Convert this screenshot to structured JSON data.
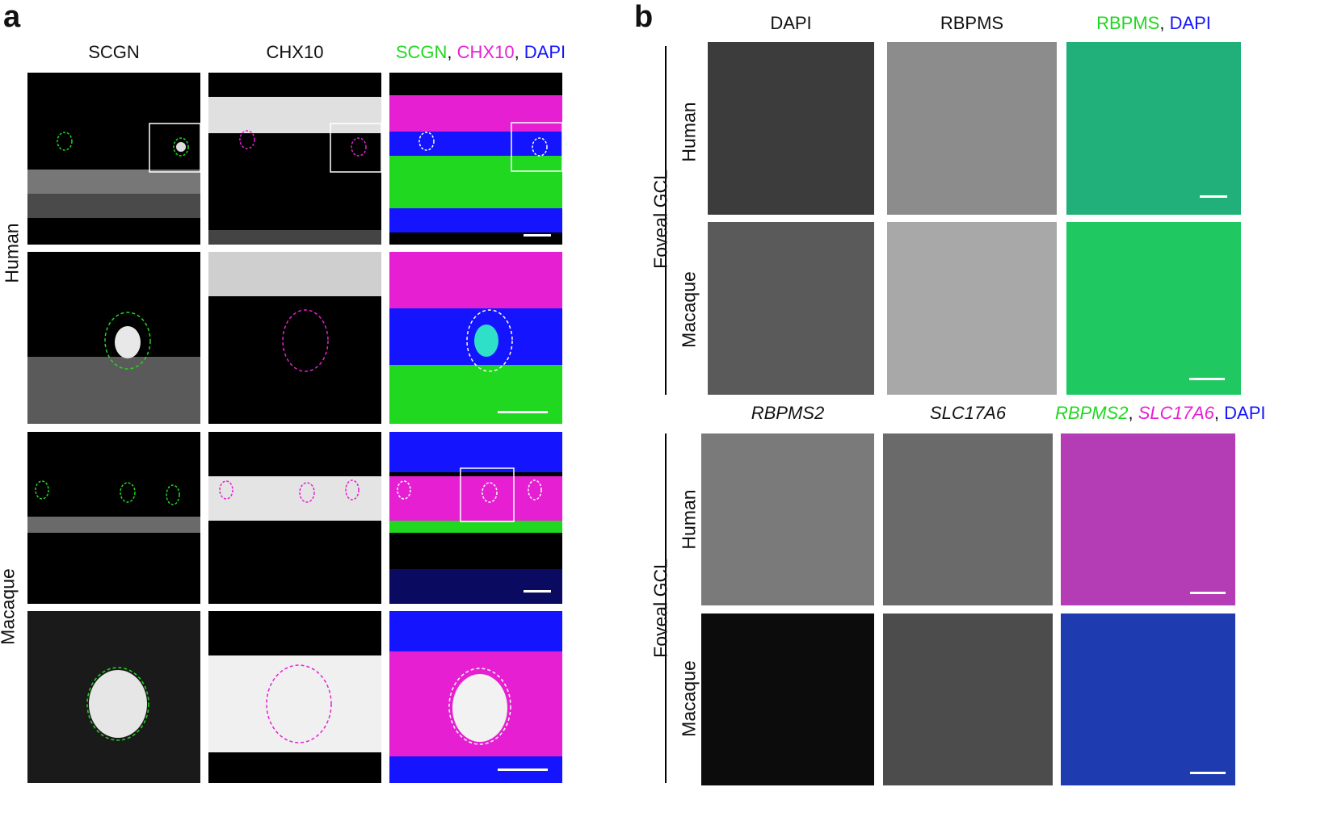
{
  "panel_a": {
    "letter": "a",
    "columns": [
      "SCGN",
      "CHX10"
    ],
    "merge": [
      {
        "text": "SCGN",
        "color": "#1fd81f"
      },
      {
        "text": ", ",
        "color": "#111111"
      },
      {
        "text": "CHX10",
        "color": "#e620d2"
      },
      {
        "text": ", ",
        "color": "#111111"
      },
      {
        "text": "DAPI",
        "color": "#1414ff"
      }
    ],
    "rows": [
      "Human",
      "Macaque"
    ]
  },
  "panel_b": {
    "letter": "b",
    "top_columns": [
      "DAPI",
      "RBPMS"
    ],
    "top_merge": [
      {
        "text": "RBPMS",
        "color": "#1fd81f"
      },
      {
        "text": ", ",
        "color": "#111111"
      },
      {
        "text": "DAPI",
        "color": "#1414ff"
      }
    ],
    "bottom_columns": [
      "RBPMS2",
      "SLC17A6"
    ],
    "bottom_merge": [
      {
        "text": "RBPMS2",
        "color": "#1fd81f"
      },
      {
        "text": ", ",
        "color": "#111111"
      },
      {
        "text": "SLC17A6",
        "color": "#e620d2"
      },
      {
        "text": ", ",
        "color": "#111111"
      },
      {
        "text": "DAPI",
        "color": "#1414ff"
      }
    ],
    "rows": [
      "Human",
      "Macaque"
    ],
    "region": "Foveal GCL"
  },
  "channel_colors": {
    "green": "#1fd81f",
    "magenta": "#e620d2",
    "blue": "#1414ff",
    "gray": "#d8d8d8"
  }
}
